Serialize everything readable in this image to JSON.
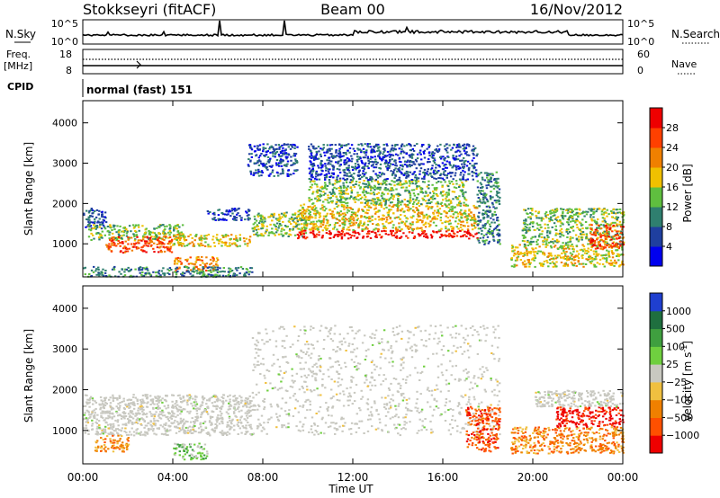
{
  "header": {
    "station": "Stokkseyri (fitACF)",
    "beam": "Beam 00",
    "date": "16/Nov/2012"
  },
  "top_panels": {
    "nsky_label": "N.Sky",
    "nsky_ticks": [
      "10^5",
      "10^0"
    ],
    "nsearch_label": "N.Search",
    "nsearch_ticks": [
      "10^5",
      "10^0"
    ],
    "freq_label": "Freq.",
    "freq_unit": "[MHz]",
    "freq_ticks": [
      "18",
      "8"
    ],
    "nave_label": "Nave",
    "nave_ticks": [
      "60",
      "0"
    ],
    "cpid_label": "CPID",
    "cpid_value": "normal (fast) 151"
  },
  "chart_data": [
    {
      "type": "heatmap",
      "name": "power",
      "ylabel": "Slant Range [km]",
      "ylim": [
        180,
        4550
      ],
      "yticks": [
        1000,
        2000,
        3000,
        4000
      ],
      "xlabel": "Time UT",
      "xlim_hours": [
        0,
        24
      ],
      "colorbar": {
        "label": "Power [dB]",
        "ticks": [
          "4",
          "8",
          "12",
          "16",
          "20",
          "24",
          "28"
        ],
        "colors": [
          "#0000ee",
          "#1f3f9f",
          "#2f7f6f",
          "#5fbf3f",
          "#f0c000",
          "#f08000",
          "#ff4000",
          "#ee0000"
        ]
      },
      "regions": [
        {
          "t0": 0.0,
          "t1": 1.0,
          "r0": 1400,
          "r1": 1900,
          "level": 1
        },
        {
          "t0": 0.2,
          "t1": 4.5,
          "r0": 1100,
          "r1": 1500,
          "level": 3
        },
        {
          "t0": 1.0,
          "t1": 4.0,
          "r0": 800,
          "r1": 1200,
          "level": 6
        },
        {
          "t0": 3.8,
          "t1": 7.4,
          "r0": 950,
          "r1": 1250,
          "level": 4
        },
        {
          "t0": 4.0,
          "t1": 6.0,
          "r0": 350,
          "r1": 700,
          "level": 5
        },
        {
          "t0": 0.0,
          "t1": 7.5,
          "r0": 200,
          "r1": 450,
          "level": 2
        },
        {
          "t0": 5.5,
          "t1": 7.4,
          "r0": 1600,
          "r1": 1900,
          "level": 1
        },
        {
          "t0": 7.5,
          "t1": 10.0,
          "r0": 1200,
          "r1": 1800,
          "level": 3
        },
        {
          "t0": 7.3,
          "t1": 9.5,
          "r0": 2700,
          "r1": 3500,
          "level": 1
        },
        {
          "t0": 9.5,
          "t1": 17.5,
          "r0": 1150,
          "r1": 1350,
          "level": 7
        },
        {
          "t0": 9.5,
          "t1": 17.5,
          "r0": 1350,
          "r1": 2000,
          "level": 4
        },
        {
          "t0": 10.0,
          "t1": 17.0,
          "r0": 2000,
          "r1": 2600,
          "level": 3
        },
        {
          "t0": 10.0,
          "t1": 17.5,
          "r0": 2600,
          "r1": 3500,
          "level": 1
        },
        {
          "t0": 17.5,
          "t1": 18.5,
          "r0": 1000,
          "r1": 2800,
          "level": 2
        },
        {
          "t0": 19.0,
          "t1": 24.0,
          "r0": 450,
          "r1": 1000,
          "level": 4
        },
        {
          "t0": 19.5,
          "t1": 24.0,
          "r0": 1000,
          "r1": 1900,
          "level": 3
        },
        {
          "t0": 22.5,
          "t1": 24.0,
          "r0": 900,
          "r1": 1500,
          "level": 6
        }
      ]
    },
    {
      "type": "heatmap",
      "name": "velocity",
      "ylabel": "Slant Range [km]",
      "ylim": [
        180,
        4550
      ],
      "yticks": [
        1000,
        2000,
        3000,
        4000
      ],
      "xlabel": "Time UT",
      "xlim_hours": [
        0,
        24
      ],
      "xticks": [
        "00:00",
        "04:00",
        "08:00",
        "12:00",
        "16:00",
        "20:00",
        "00:00"
      ],
      "colorbar": {
        "label": "Velocity [m s",
        "label_exponent": "-1",
        "label_close": "]",
        "ticks": [
          "1000",
          "500",
          "100",
          "25",
          "−25",
          "−100",
          "−500",
          "−1000"
        ],
        "colors": [
          "#1f3fcf",
          "#1f6f3f",
          "#3f9f3f",
          "#6fcf3f",
          "#c8c8c0",
          "#f0c040",
          "#f08000",
          "#ff5000",
          "#ee0000"
        ]
      },
      "regions": [
        {
          "t0": 0.0,
          "t1": 7.5,
          "r0": 900,
          "r1": 1900,
          "level": 4
        },
        {
          "t0": 0.5,
          "t1": 2.0,
          "r0": 500,
          "r1": 900,
          "level": 6
        },
        {
          "t0": 4.0,
          "t1": 5.5,
          "r0": 300,
          "r1": 700,
          "level": 3
        },
        {
          "t0": 7.5,
          "t1": 18.5,
          "r0": 900,
          "r1": 3600,
          "level": 4
        },
        {
          "t0": 17.0,
          "t1": 18.5,
          "r0": 500,
          "r1": 1600,
          "level": 7
        },
        {
          "t0": 19.0,
          "t1": 24.0,
          "r0": 450,
          "r1": 1100,
          "level": 6
        },
        {
          "t0": 21.0,
          "t1": 24.0,
          "r0": 1100,
          "r1": 1600,
          "level": 8
        },
        {
          "t0": 20.0,
          "t1": 24.0,
          "r0": 1600,
          "r1": 2000,
          "level": 4
        }
      ]
    }
  ]
}
